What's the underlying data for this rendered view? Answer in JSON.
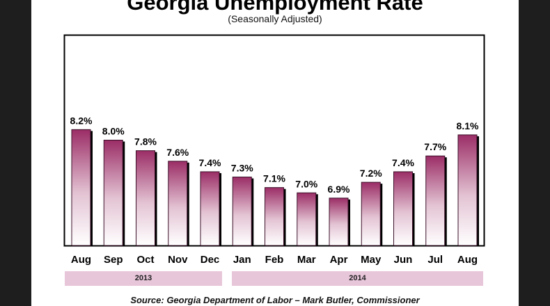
{
  "chart_data": {
    "type": "bar",
    "title": "Georgia Unemployment Rate",
    "subtitle": "(Seasonally Adjusted)",
    "categories": [
      "Aug",
      "Sep",
      "Oct",
      "Nov",
      "Dec",
      "Jan",
      "Feb",
      "Mar",
      "Apr",
      "May",
      "Jun",
      "Jul",
      "Aug"
    ],
    "values": [
      8.2,
      8.0,
      7.8,
      7.6,
      7.4,
      7.3,
      7.1,
      7.0,
      6.9,
      7.2,
      7.4,
      7.7,
      8.1
    ],
    "data_labels": [
      "8.2%",
      "8.0%",
      "7.8%",
      "7.6%",
      "7.4%",
      "7.3%",
      "7.1%",
      "7.0%",
      "6.9%",
      "7.2%",
      "7.4%",
      "7.7%",
      "8.1%"
    ],
    "year_groups": [
      {
        "label": "2013",
        "categories": 5
      },
      {
        "label": "2014",
        "categories": 8
      }
    ],
    "ylim": [
      6,
      10
    ],
    "grid": false,
    "bar_color": "#9b2d66",
    "band_color": "#e8c6da",
    "source": "Source: Georgia Department of Labor – Mark  Butler, Commissioner"
  }
}
